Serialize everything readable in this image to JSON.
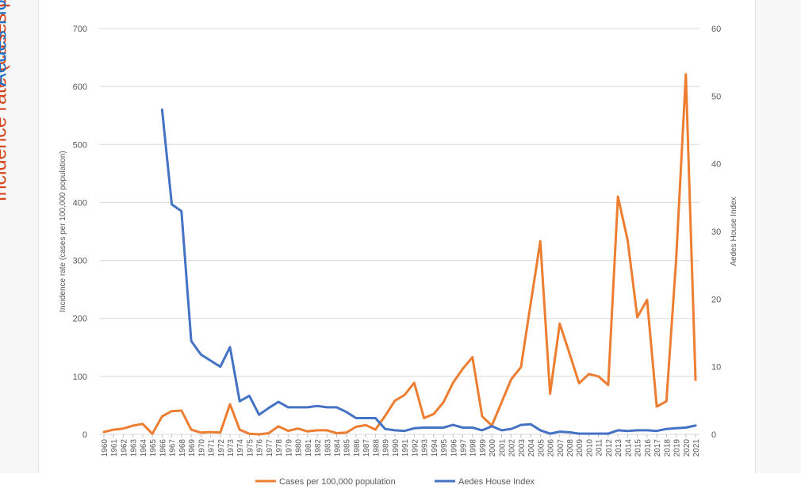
{
  "outer_titles": {
    "left": "Incidence rate (cases per 100,000 population)",
    "right": "Aedes House Index",
    "left_color": "#d5451b",
    "right_color": "#1f6fc6"
  },
  "chart_data": {
    "type": "line",
    "xlabel": "",
    "ylabel": "Incidence rate (cases per 100,000 population)",
    "y2label": "Aedes House Index",
    "ylim": [
      0,
      700
    ],
    "y2lim": [
      0,
      60
    ],
    "yticks": [
      0,
      100,
      200,
      300,
      400,
      500,
      600,
      700
    ],
    "y2ticks": [
      0,
      10,
      20,
      30,
      40,
      50,
      60
    ],
    "grid": true,
    "legend": "bottom",
    "x": [
      1960,
      1961,
      1962,
      1963,
      1964,
      1965,
      1966,
      1967,
      1968,
      1969,
      1970,
      1971,
      1972,
      1973,
      1974,
      1975,
      1976,
      1977,
      1978,
      1979,
      1980,
      1981,
      1982,
      1983,
      1984,
      1985,
      1986,
      1987,
      1988,
      1989,
      1990,
      1991,
      1992,
      1993,
      1994,
      1995,
      1996,
      1997,
      1998,
      1999,
      2000,
      2001,
      2002,
      2003,
      2004,
      2005,
      2006,
      2007,
      2008,
      2009,
      2010,
      2011,
      2012,
      2013,
      2014,
      2015,
      2016,
      2017,
      2018,
      2019,
      2020,
      2021
    ],
    "series": [
      {
        "name": "Cases per 100,000 population",
        "axis": "left",
        "color": "#ed7d31",
        "values": [
          4,
          8,
          10,
          15,
          18,
          1,
          31,
          40,
          41,
          8,
          3,
          4,
          3,
          52,
          8,
          1,
          0,
          2,
          14,
          6,
          10,
          5,
          7,
          7,
          2,
          3,
          13,
          16,
          8,
          32,
          58,
          68,
          89,
          28,
          35,
          55,
          89,
          113,
          133,
          31,
          15,
          55,
          95,
          116,
          225,
          333,
          70,
          191,
          140,
          88,
          104,
          100,
          85,
          410,
          335,
          202,
          232,
          48,
          57,
          300,
          621,
          94
        ]
      },
      {
        "name": "Aedes House Index",
        "axis": "right",
        "color": "#4472c4",
        "values": [
          null,
          null,
          null,
          null,
          null,
          null,
          48,
          34,
          33,
          13.8,
          11.8,
          10.9,
          10,
          12.9,
          4.9,
          5.7,
          2.9,
          3.9,
          4.8,
          4,
          4,
          4,
          4.2,
          4,
          4,
          3.3,
          2.4,
          2.4,
          2.4,
          0.8,
          0.6,
          0.5,
          0.9,
          1,
          1,
          1,
          1.4,
          1,
          1,
          0.6,
          1.2,
          0.6,
          0.8,
          1.4,
          1.5,
          0.6,
          0.1,
          0.4,
          0.3,
          0.1,
          0.1,
          0.1,
          0.1,
          0.6,
          0.5,
          0.6,
          0.6,
          0.5,
          0.8,
          0.9,
          1,
          1.3
        ]
      }
    ]
  }
}
